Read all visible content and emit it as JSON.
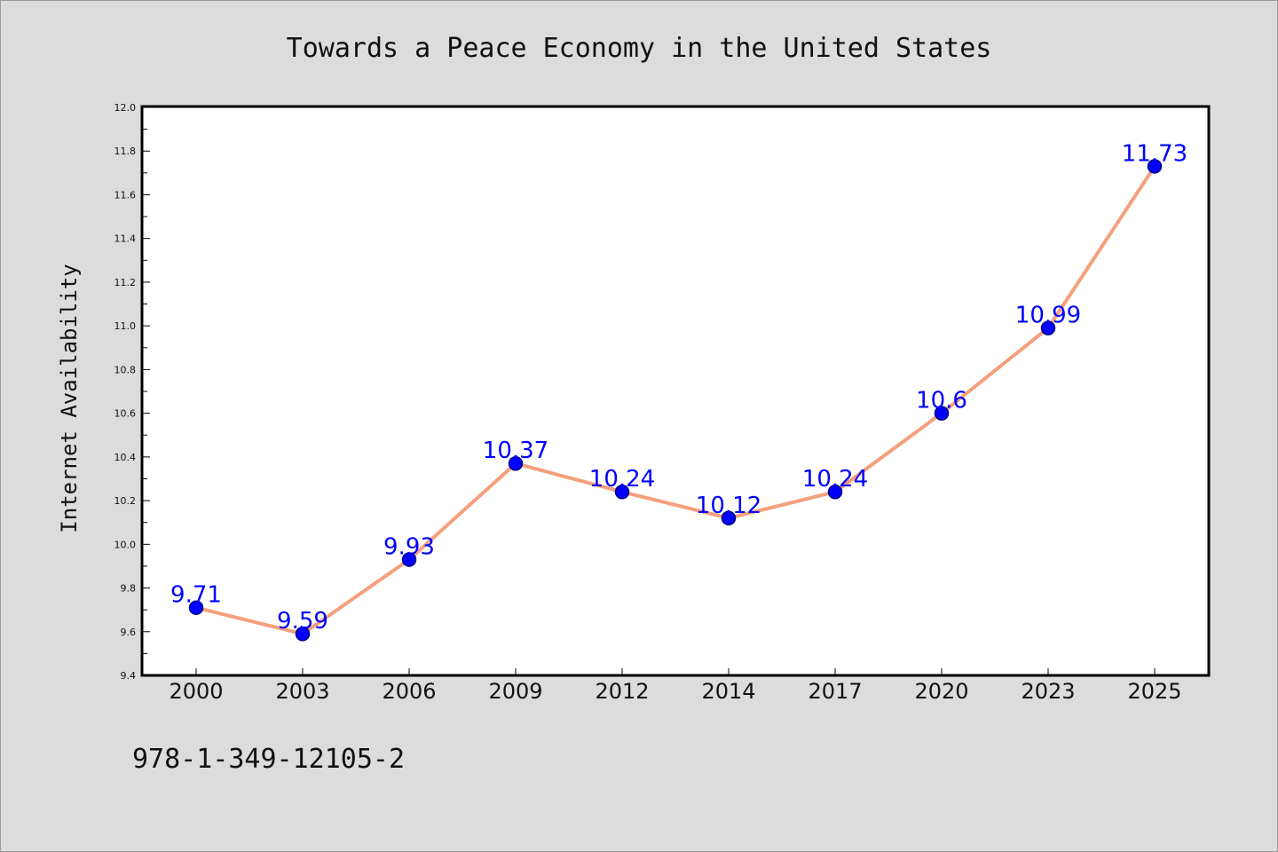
{
  "chart_data": {
    "type": "line",
    "title": "Towards a Peace Economy in the United States",
    "xlabel": "",
    "ylabel": "Internet Availability",
    "categories": [
      "2000",
      "2003",
      "2006",
      "2009",
      "2012",
      "2014",
      "2017",
      "2020",
      "2023",
      "2025"
    ],
    "series": [
      {
        "values": [
          9.71,
          9.59,
          9.93,
          10.37,
          10.24,
          10.12,
          10.24,
          10.6,
          10.99,
          11.73
        ]
      }
    ],
    "data_labels": [
      "9.71",
      "9.59",
      "9.93",
      "10.37",
      "10.24",
      "10.12",
      "10.24",
      "10.6",
      "10.99",
      "11.73"
    ],
    "ylim": [
      9.4,
      12.0
    ],
    "yticks": [
      "9.4",
      "9.6",
      "9.8",
      "10.0",
      "10.2",
      "10.4",
      "10.6",
      "10.8",
      "11.0",
      "11.2",
      "11.4",
      "11.6",
      "11.8",
      "12.0"
    ],
    "grid": false,
    "legend": "none",
    "colors": {
      "line": "#f4a07c",
      "marker_fill": "#0000ff",
      "marker_edge": "#000080",
      "label": "#0000ff",
      "background": "#dcdcdc",
      "plot_background": "#ffffff"
    }
  },
  "footer": {
    "isbn": "978-1-349-12105-2"
  }
}
